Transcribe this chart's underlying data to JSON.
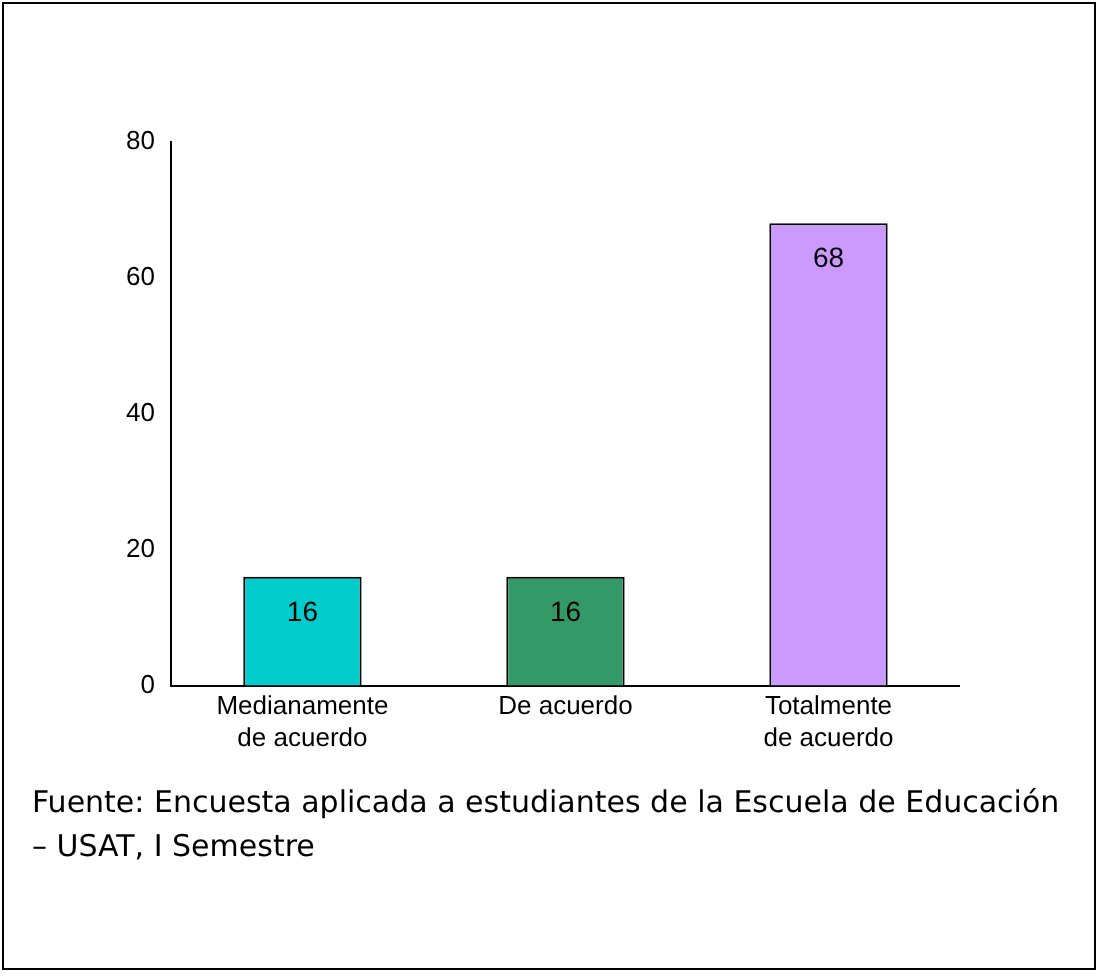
{
  "chart_data": {
    "type": "bar",
    "categories": [
      "Medianamente de acuerdo",
      "De acuerdo",
      "Totalmente de acuerdo"
    ],
    "values": [
      16,
      16,
      68
    ],
    "colors": [
      "#00cccc",
      "#339966",
      "#cc99ff"
    ],
    "ylim": [
      0,
      80
    ],
    "yticks": [
      0,
      20,
      40,
      60,
      80
    ],
    "grid": false,
    "legend": false,
    "data_labels": true,
    "annotations": [
      "Fuente: Encuesta aplicada a estudiantes de la Escuela de Educación – USAT, I Semestre"
    ]
  }
}
